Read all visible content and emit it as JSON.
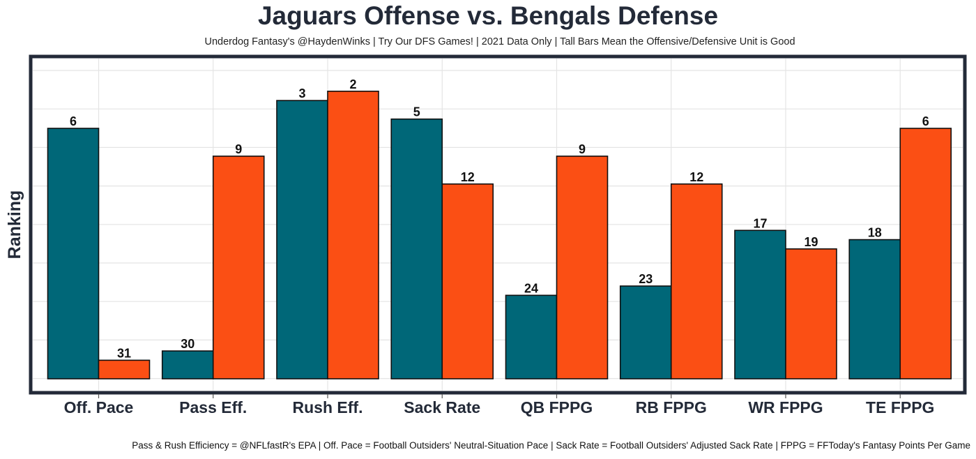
{
  "chart_data": {
    "type": "bar",
    "title": "Jaguars Offense vs. Bengals Defense",
    "subtitle": "Underdog Fantasy's @HaydenWinks | Try Our DFS Games! | 2021 Data Only | Tall Bars Mean the Offensive/Defensive Unit is Good",
    "caption": "Pass & Rush Efficiency = @NFLfastR's EPA | Off. Pace = Football Outsiders' Neutral-Situation Pace | Sack Rate = Football Outsiders' Adjusted Sack Rate | FPPG = FFToday's Fantasy Points Per Game",
    "xlabel": "",
    "ylabel": "Ranking",
    "categories": [
      "Off. Pace",
      "Pass Eff.",
      "Rush Eff.",
      "Sack Rate",
      "QB FPPG",
      "RB FPPG",
      "WR FPPG",
      "TE FPPG"
    ],
    "series": [
      {
        "values": [
          6,
          30,
          3,
          5,
          24,
          23,
          17,
          18
        ],
        "color": "#006778"
      },
      {
        "values": [
          31,
          9,
          2,
          12,
          9,
          12,
          19,
          6
        ],
        "color": "#fb4f14"
      }
    ],
    "ylim": [
      33,
      1
    ],
    "grid": true,
    "legend": "none"
  }
}
